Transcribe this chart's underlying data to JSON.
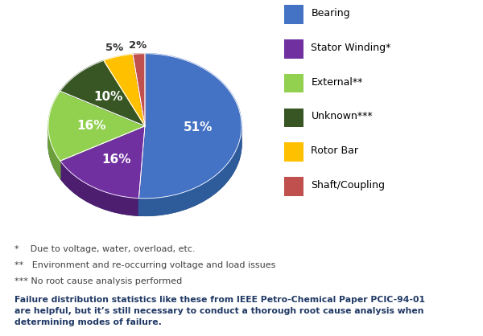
{
  "labels": [
    "Bearing",
    "Stator Winding*",
    "External**",
    "Unknown***",
    "Rotor Bar",
    "Shaft/Coupling"
  ],
  "values": [
    51,
    16,
    16,
    10,
    5,
    2
  ],
  "colors": [
    "#4472C4",
    "#7030A0",
    "#92D050",
    "#375623",
    "#FFC000",
    "#C0504D"
  ],
  "shadow_color": "#1F3864",
  "shadow_side_colors": [
    "#2E5B9A",
    "#4D1E70",
    "#6B9E3A",
    "#243D17",
    "#C49200",
    "#8B3A38"
  ],
  "pct_labels": [
    "51%",
    "16%",
    "16%",
    "10%",
    "5%",
    "2%"
  ],
  "legend_labels": [
    "Bearing",
    "Stator Winding*",
    "External**",
    "Unknown***",
    "Rotor Bar",
    "Shaft/Coupling"
  ],
  "footnotes": [
    "*    Due to voltage, water, overload, etc.",
    "**   Environment and re-occurring voltage and load issues",
    "*** No root cause analysis performed"
  ],
  "bold_text": "Failure distribution statistics like these from IEEE Petro-Chemical Paper PCIC-94-01\nare helpful, but it’s still necessary to conduct a thorough root cause analysis when\ndetermining modes of failure.",
  "bold_text_color": "#1F3864",
  "footnote_color": "#404040",
  "background_color": "#FFFFFF",
  "startangle": 90
}
